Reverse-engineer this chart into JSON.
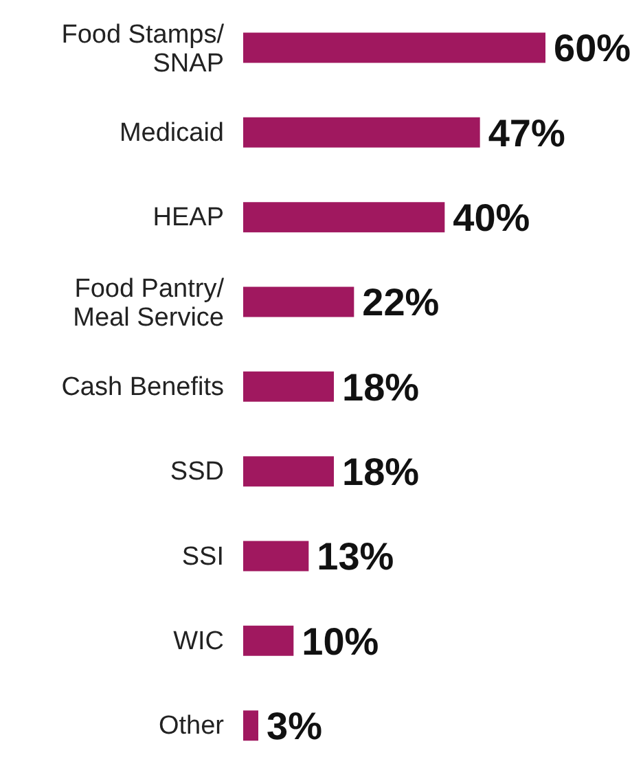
{
  "chart_data": {
    "type": "bar",
    "orientation": "horizontal",
    "categories": [
      "Food Stamps/SNAP",
      "Medicaid",
      "HEAP",
      "Food Pantry/Meal Service",
      "Cash Benefits",
      "SSD",
      "SSI",
      "WIC",
      "Other"
    ],
    "values": [
      60,
      47,
      40,
      22,
      18,
      18,
      13,
      10,
      3
    ],
    "color": "#a0185f",
    "value_labels": [
      "60%",
      "47%",
      "40%",
      "22%",
      "18%",
      "18%",
      "13%",
      "10%",
      "3%"
    ]
  }
}
